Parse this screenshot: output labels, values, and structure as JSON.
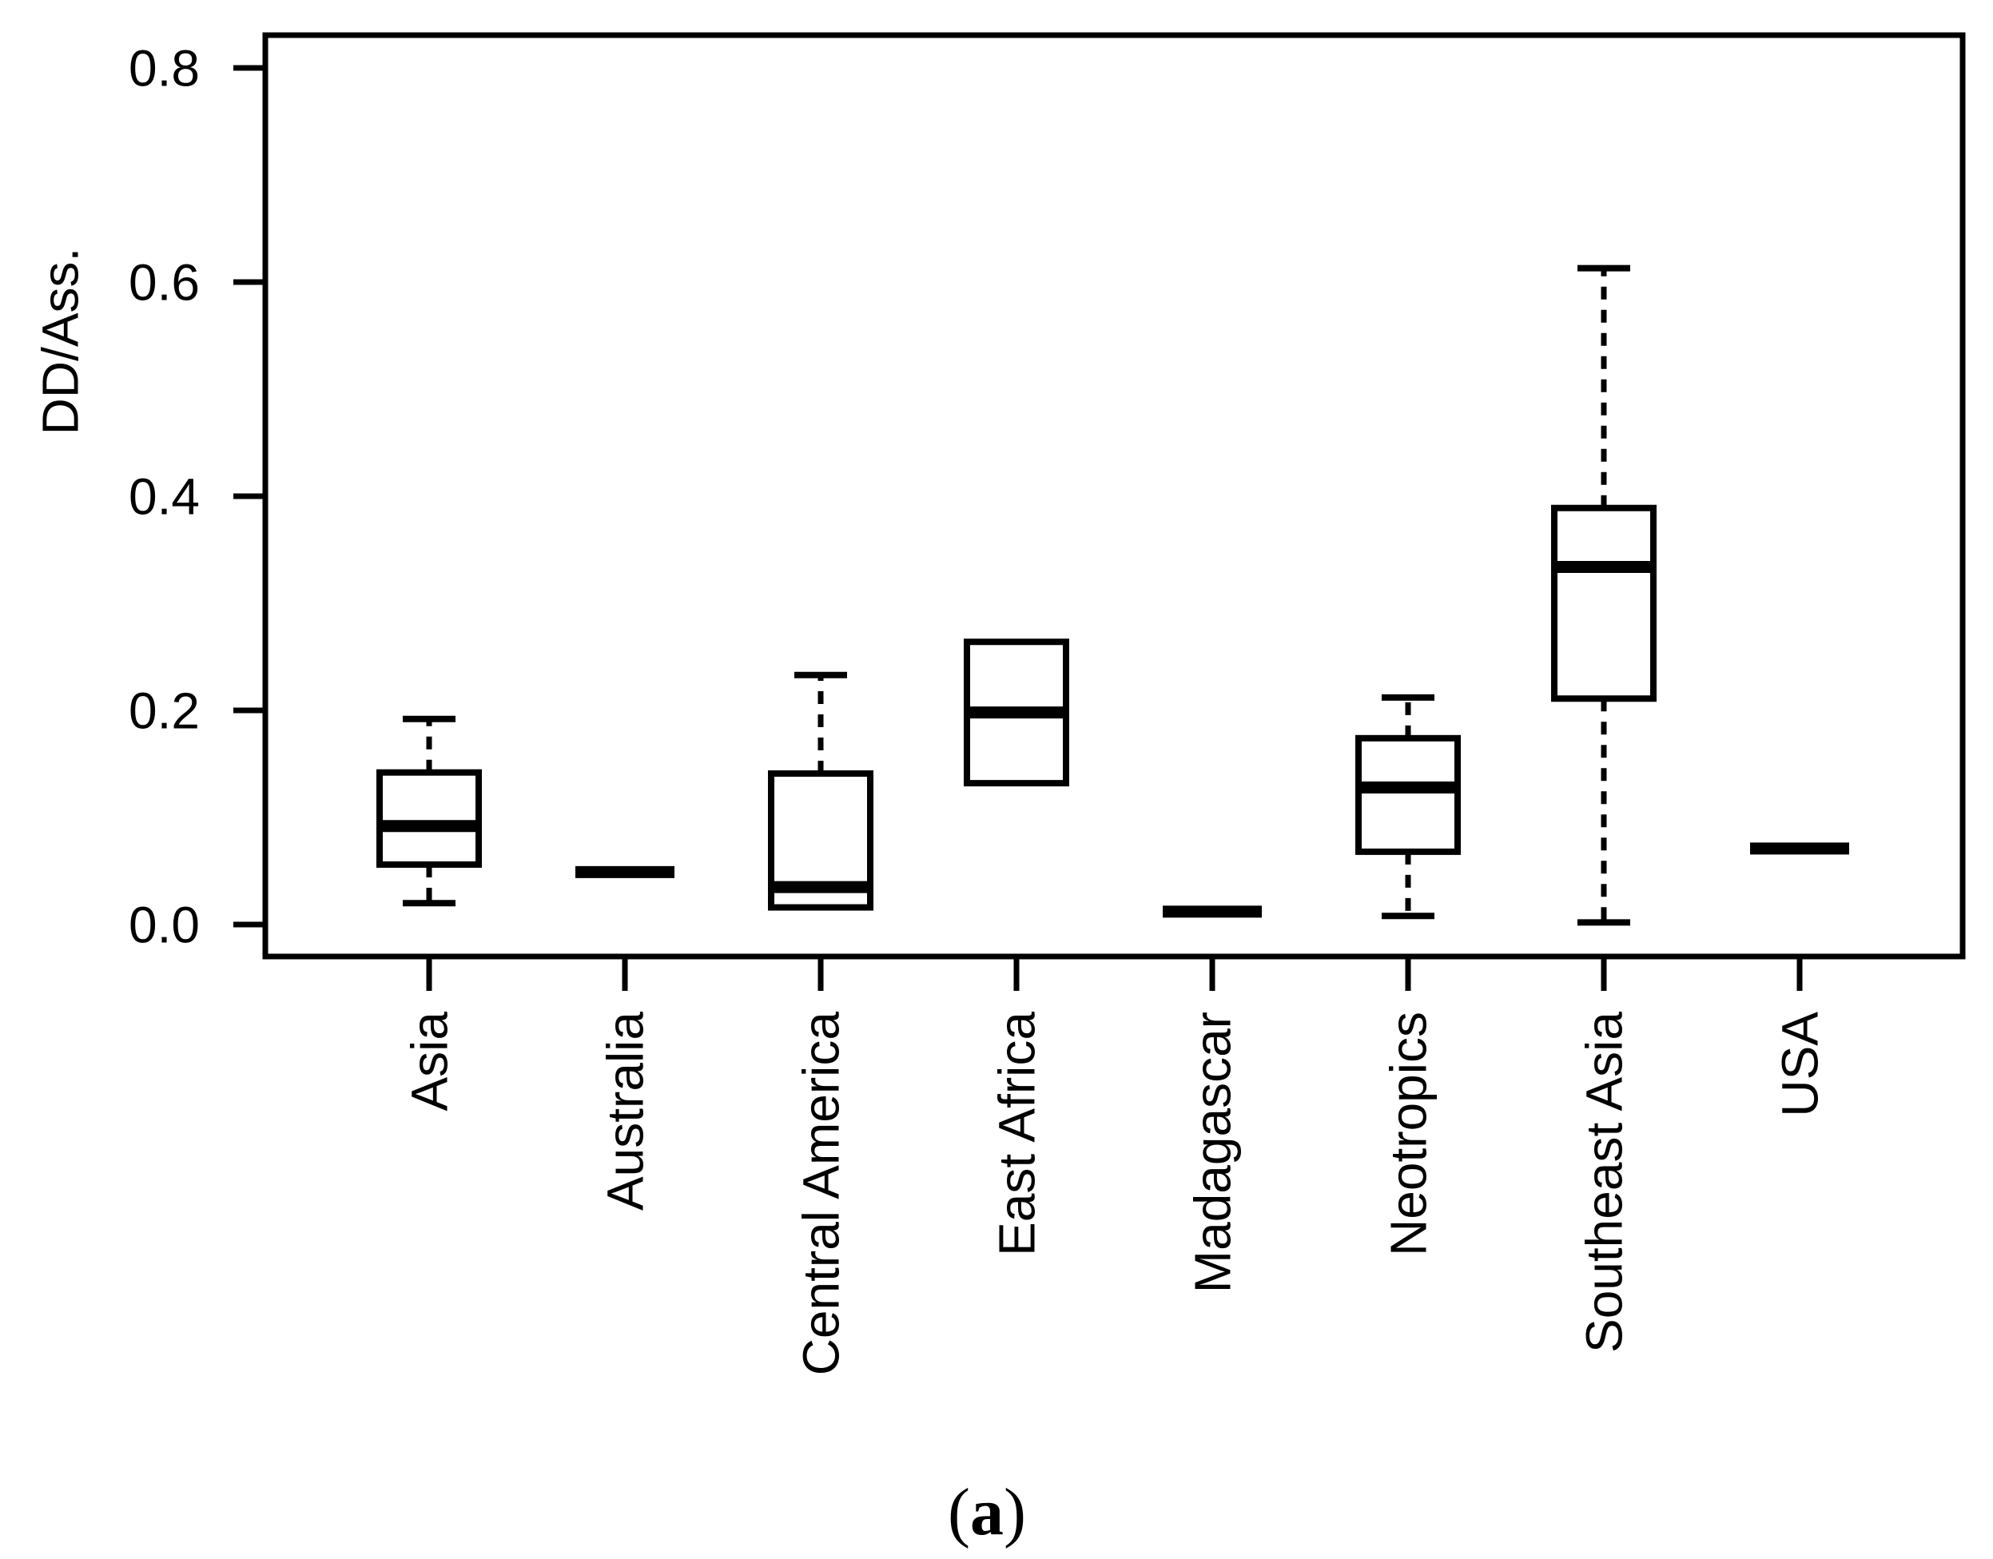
{
  "figure": {
    "background": "#ffffff",
    "ink_color": "#000000",
    "caption": {
      "open": "(",
      "letter": "a",
      "close": ")"
    }
  },
  "chart_data": {
    "type": "boxplot",
    "title": "",
    "xlabel": "",
    "ylabel": "DD/Ass.",
    "grid": false,
    "ylim": [
      -0.035,
      0.85
    ],
    "y_tick_labels": [
      "0.0",
      "0.2",
      "0.4",
      "0.6",
      "0.8"
    ],
    "y_tick_values": [
      0.0,
      0.2,
      0.4,
      0.6,
      0.8
    ],
    "categories": [
      "Asia",
      "Australia",
      "Central America",
      "East Africa",
      "Madagascar",
      "Neotropics",
      "Southeast Asia",
      "USA"
    ],
    "series": [
      {
        "category": "Asia",
        "whisker_low": 0.02,
        "q1": 0.056,
        "median": 0.092,
        "q3": 0.142,
        "whisker_high": 0.192
      },
      {
        "category": "Australia",
        "whisker_low": null,
        "q1": null,
        "median": 0.049,
        "q3": null,
        "whisker_high": null
      },
      {
        "category": "Central America",
        "whisker_low": null,
        "q1": 0.016,
        "median": 0.035,
        "q3": 0.141,
        "whisker_high": 0.233
      },
      {
        "category": "East Africa",
        "whisker_low": null,
        "q1": 0.132,
        "median": 0.198,
        "q3": 0.264,
        "whisker_high": null
      },
      {
        "category": "Madagascar",
        "whisker_low": null,
        "q1": null,
        "median": 0.012,
        "q3": null,
        "whisker_high": null
      },
      {
        "category": "Neotropics",
        "whisker_low": 0.008,
        "q1": 0.068,
        "median": 0.128,
        "q3": 0.174,
        "whisker_high": 0.212
      },
      {
        "category": "Southeast Asia",
        "whisker_low": 0.002,
        "q1": 0.211,
        "median": 0.334,
        "q3": 0.389,
        "whisker_high": 0.613
      },
      {
        "category": "USA",
        "whisker_low": null,
        "q1": null,
        "median": 0.071,
        "q3": null,
        "whisker_high": null
      }
    ]
  }
}
